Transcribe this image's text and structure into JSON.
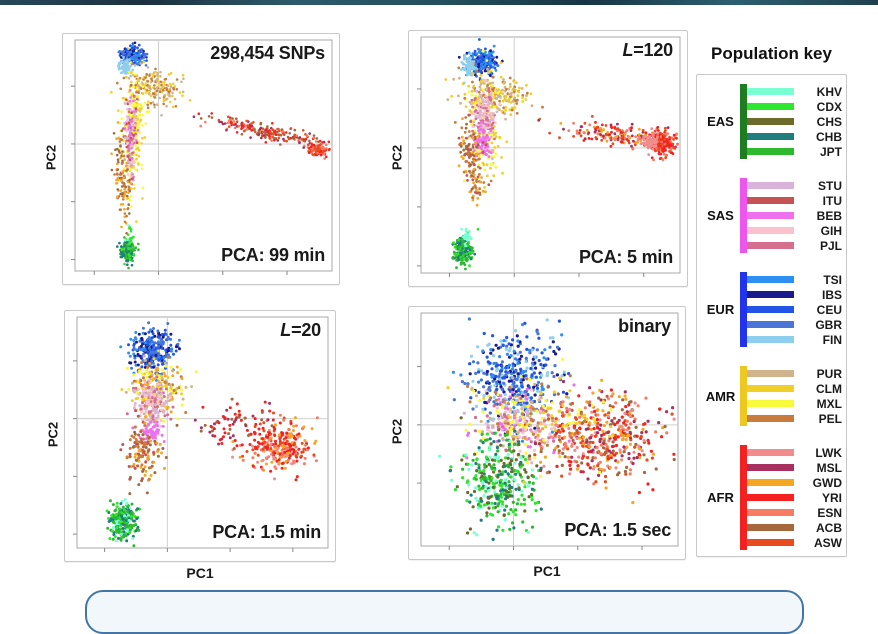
{
  "page": {
    "top_bar_colors": [
      "#27485a",
      "#1c3040",
      "#2d5b6b",
      "#24505e",
      "#173545",
      "#2d5f70",
      "#20404e"
    ],
    "callout_border_color": "#4276a8",
    "callout_fill_color": "#f2f7fb",
    "background": "#ffffff"
  },
  "palette": {
    "KHV": "#7affd2",
    "CDX": "#2ee62e",
    "CHS": "#6b6b2a",
    "CHB": "#1f7d7d",
    "JPT": "#2eb82e",
    "STU": "#d9b3d9",
    "ITU": "#c65353",
    "BEB": "#ee70ee",
    "GIH": "#f9c2cc",
    "PJL": "#d66e8e",
    "TSI": "#2e8ff2",
    "IBS": "#1a1a8c",
    "CEU": "#2255e6",
    "GBR": "#4a74d8",
    "FIN": "#8fcfee",
    "PUR": "#d2b48c",
    "CLM": "#f0d028",
    "MXL": "#fafa3c",
    "PEL": "#c87b3c",
    "LWK": "#f28c8c",
    "MSL": "#a83060",
    "GWD": "#f5a623",
    "YRI": "#f52020",
    "ESN": "#f87c64",
    "ACB": "#a5683c",
    "ASW": "#e84c1e"
  },
  "legend": {
    "title": "Population key",
    "groups": [
      {
        "label": "EAS",
        "bar": "#1e7d1e",
        "items": [
          "KHV",
          "CDX",
          "CHS",
          "CHB",
          "JPT"
        ]
      },
      {
        "label": "SAS",
        "bar": "#ee55ee",
        "items": [
          "STU",
          "ITU",
          "BEB",
          "GIH",
          "PJL"
        ]
      },
      {
        "label": "EUR",
        "bar": "#2233ee",
        "items": [
          "TSI",
          "IBS",
          "CEU",
          "GBR",
          "FIN"
        ]
      },
      {
        "label": "AMR",
        "bar": "#eec81e",
        "items": [
          "PUR",
          "CLM",
          "MXL",
          "PEL"
        ]
      },
      {
        "label": "AFR",
        "bar": "#f52020",
        "items": [
          "LWK",
          "MSL",
          "GWD",
          "YRI",
          "ESN",
          "ACB",
          "ASW"
        ]
      }
    ]
  },
  "chart_data": [
    {
      "type": "scatter",
      "annotation": {
        "italic": "",
        "text": "298,454 SNPs"
      },
      "time_label": "PCA: 99 min",
      "xlabel": "",
      "ylabel": "PC2",
      "grid": {
        "vx": 0.325,
        "hy": 0.55
      },
      "point_r": 1.3,
      "seed": 11,
      "clusters": [
        {
          "group": "EUR",
          "n": 220,
          "cx": 0.225,
          "cy": 0.935,
          "sx": 0.022,
          "sy": 0.017,
          "rot": 0,
          "colors": [
            "CEU",
            "TSI",
            "IBS",
            "GBR"
          ]
        },
        {
          "group": "EUR-FIN",
          "n": 70,
          "cx": 0.193,
          "cy": 0.878,
          "sx": 0.012,
          "sy": 0.016,
          "rot": 0,
          "colors": [
            "FIN"
          ]
        },
        {
          "group": "AMR-tan",
          "n": 190,
          "cx": 0.305,
          "cy": 0.795,
          "sx": 0.06,
          "sy": 0.038,
          "rot": -25,
          "colors": [
            "PUR",
            "PEL",
            "CLM"
          ]
        },
        {
          "group": "AMR-yellow",
          "n": 220,
          "cx": 0.228,
          "cy": 0.62,
          "sx": 0.02,
          "sy": 0.13,
          "rot": 0,
          "colors": [
            "MXL",
            "CLM",
            "MXL"
          ]
        },
        {
          "group": "SAS",
          "n": 180,
          "cx": 0.215,
          "cy": 0.58,
          "sx": 0.011,
          "sy": 0.095,
          "rot": 0,
          "colors": [
            "GIH",
            "PJL",
            "BEB",
            "STU",
            "ITU"
          ]
        },
        {
          "group": "AMR-brown",
          "n": 120,
          "cx": 0.185,
          "cy": 0.4,
          "sx": 0.015,
          "sy": 0.1,
          "rot": 5,
          "colors": [
            "PEL",
            "ACB",
            "GWD"
          ]
        },
        {
          "group": "AFR-streak",
          "n": 230,
          "cx": 0.76,
          "cy": 0.6,
          "sx": 0.12,
          "sy": 0.018,
          "rot": -14,
          "colors": [
            "YRI",
            "ASW",
            "ESN",
            "ACB",
            "MSL"
          ]
        },
        {
          "group": "AFR-dense",
          "n": 120,
          "cx": 0.945,
          "cy": 0.525,
          "sx": 0.016,
          "sy": 0.013,
          "rot": 0,
          "colors": [
            "YRI",
            "ESN",
            "ASW"
          ]
        },
        {
          "group": "EAS",
          "n": 190,
          "cx": 0.205,
          "cy": 0.08,
          "sx": 0.014,
          "sy": 0.024,
          "rot": 0,
          "colors": [
            "JPT",
            "CDX",
            "CHB",
            "JPT"
          ]
        },
        {
          "group": "EAS-fringe",
          "n": 26,
          "cx": 0.215,
          "cy": 0.145,
          "sx": 0.007,
          "sy": 0.03,
          "rot": 0,
          "colors": [
            "KHV",
            "CDX"
          ]
        }
      ]
    },
    {
      "type": "scatter",
      "annotation": {
        "italic": "L",
        "text": "=120"
      },
      "time_label": "PCA: 5 min",
      "xlabel": "",
      "ylabel": "PC2",
      "grid": {
        "vx": 0.36,
        "hy": 0.53
      },
      "point_r": 1.4,
      "seed": 22,
      "clusters": [
        {
          "group": "EUR",
          "n": 280,
          "cx": 0.235,
          "cy": 0.895,
          "sx": 0.028,
          "sy": 0.027,
          "rot": 0,
          "colors": [
            "CEU",
            "TSI",
            "GBR",
            "IBS",
            "TSI"
          ]
        },
        {
          "group": "EUR-FIN",
          "n": 80,
          "cx": 0.183,
          "cy": 0.868,
          "sx": 0.014,
          "sy": 0.022,
          "rot": 0,
          "colors": [
            "FIN"
          ]
        },
        {
          "group": "AMR-tan",
          "n": 180,
          "cx": 0.3,
          "cy": 0.755,
          "sx": 0.062,
          "sy": 0.042,
          "rot": -20,
          "colors": [
            "PUR",
            "PEL",
            "CLM"
          ]
        },
        {
          "group": "AMR-yellow",
          "n": 190,
          "cx": 0.245,
          "cy": 0.63,
          "sx": 0.03,
          "sy": 0.1,
          "rot": 0,
          "colors": [
            "MXL",
            "CLM"
          ]
        },
        {
          "group": "SAS-pink",
          "n": 190,
          "cx": 0.245,
          "cy": 0.66,
          "sx": 0.022,
          "sy": 0.055,
          "rot": 0,
          "colors": [
            "GIH",
            "PJL",
            "STU"
          ]
        },
        {
          "group": "SAS-BEB",
          "n": 70,
          "cx": 0.235,
          "cy": 0.555,
          "sx": 0.018,
          "sy": 0.035,
          "rot": 0,
          "colors": [
            "BEB"
          ]
        },
        {
          "group": "AMR-brown",
          "n": 140,
          "cx": 0.2,
          "cy": 0.46,
          "sx": 0.022,
          "sy": 0.09,
          "rot": 8,
          "colors": [
            "PEL",
            "ACB",
            "GWD",
            "ITU"
          ]
        },
        {
          "group": "AFR-streak",
          "n": 190,
          "cx": 0.78,
          "cy": 0.585,
          "sx": 0.11,
          "sy": 0.022,
          "rot": -8,
          "colors": [
            "YRI",
            "ASW",
            "MSL",
            "ESN",
            "GWD"
          ]
        },
        {
          "group": "AFR-dense",
          "n": 180,
          "cx": 0.93,
          "cy": 0.55,
          "sx": 0.022,
          "sy": 0.028,
          "rot": 0,
          "colors": [
            "YRI",
            "ESN",
            "ASW",
            "YRI"
          ]
        },
        {
          "group": "AFR-LWK",
          "n": 60,
          "cx": 0.885,
          "cy": 0.555,
          "sx": 0.015,
          "sy": 0.018,
          "rot": 0,
          "colors": [
            "LWK"
          ]
        },
        {
          "group": "EAS",
          "n": 220,
          "cx": 0.165,
          "cy": 0.095,
          "sx": 0.018,
          "sy": 0.028,
          "rot": 0,
          "colors": [
            "JPT",
            "CDX",
            "CHB",
            "JPT"
          ]
        },
        {
          "group": "EAS-fringe",
          "n": 24,
          "cx": 0.175,
          "cy": 0.155,
          "sx": 0.01,
          "sy": 0.018,
          "rot": 0,
          "colors": [
            "KHV"
          ]
        }
      ]
    },
    {
      "type": "scatter",
      "annotation": {
        "italic": "L",
        "text": "=20"
      },
      "time_label": "PCA: 1.5 min",
      "xlabel": "PC1",
      "ylabel": "PC2",
      "grid": {
        "vx": 0.36,
        "hy": 0.56
      },
      "point_r": 1.5,
      "seed": 33,
      "clusters": [
        {
          "group": "EUR",
          "n": 290,
          "cx": 0.3,
          "cy": 0.855,
          "sx": 0.042,
          "sy": 0.042,
          "rot": 0,
          "colors": [
            "CEU",
            "TSI",
            "GBR",
            "IBS"
          ]
        },
        {
          "group": "AMR-cloud",
          "n": 230,
          "cx": 0.315,
          "cy": 0.685,
          "sx": 0.05,
          "sy": 0.06,
          "rot": 0,
          "colors": [
            "MXL",
            "CLM",
            "PUR",
            "GWD",
            "PEL"
          ]
        },
        {
          "group": "SAS-pink",
          "n": 180,
          "cx": 0.295,
          "cy": 0.63,
          "sx": 0.033,
          "sy": 0.05,
          "rot": 0,
          "colors": [
            "GIH",
            "PJL",
            "STU"
          ]
        },
        {
          "group": "SAS-BEB",
          "n": 60,
          "cx": 0.3,
          "cy": 0.5,
          "sx": 0.022,
          "sy": 0.025,
          "rot": 0,
          "colors": [
            "BEB"
          ]
        },
        {
          "group": "AMR-brown",
          "n": 130,
          "cx": 0.26,
          "cy": 0.43,
          "sx": 0.035,
          "sy": 0.07,
          "rot": 0,
          "colors": [
            "PEL",
            "ACB",
            "GWD",
            "ITU"
          ]
        },
        {
          "group": "AFR",
          "n": 290,
          "cx": 0.81,
          "cy": 0.44,
          "sx": 0.065,
          "sy": 0.055,
          "rot": 0,
          "colors": [
            "YRI",
            "ESN",
            "ASW",
            "LWK",
            "GWD",
            "YRI"
          ]
        },
        {
          "group": "AFR-tail",
          "n": 70,
          "cx": 0.62,
          "cy": 0.54,
          "sx": 0.09,
          "sy": 0.045,
          "rot": 0,
          "colors": [
            "YRI",
            "MSL",
            "ACB"
          ]
        },
        {
          "group": "EAS",
          "n": 240,
          "cx": 0.185,
          "cy": 0.115,
          "sx": 0.026,
          "sy": 0.038,
          "rot": 0,
          "colors": [
            "JPT",
            "CDX",
            "KHV",
            "JPT",
            "CHB"
          ]
        }
      ]
    },
    {
      "type": "scatter",
      "annotation": {
        "italic": "",
        "text": "binary"
      },
      "time_label": "PCA: 1.5 sec",
      "xlabel": "PC1",
      "ylabel": "PC2",
      "grid": {
        "vx": 0.36,
        "hy": 0.52
      },
      "point_r": 1.6,
      "seed": 44,
      "clusters": [
        {
          "group": "EUR",
          "n": 400,
          "cx": 0.355,
          "cy": 0.72,
          "sx": 0.085,
          "sy": 0.095,
          "rot": 0,
          "colors": [
            "CEU",
            "TSI",
            "GBR",
            "IBS",
            "FIN"
          ]
        },
        {
          "group": "SAS",
          "n": 280,
          "cx": 0.38,
          "cy": 0.53,
          "sx": 0.085,
          "sy": 0.075,
          "rot": 0,
          "colors": [
            "GIH",
            "PJL",
            "BEB",
            "STU",
            "MXL",
            "PUR"
          ]
        },
        {
          "group": "EAS",
          "n": 360,
          "cx": 0.295,
          "cy": 0.29,
          "sx": 0.075,
          "sy": 0.1,
          "rot": 0,
          "colors": [
            "JPT",
            "CDX",
            "KHV",
            "CHB",
            "CHS"
          ]
        },
        {
          "group": "AFR",
          "n": 440,
          "cx": 0.7,
          "cy": 0.47,
          "sx": 0.115,
          "sy": 0.095,
          "rot": 0,
          "colors": [
            "YRI",
            "ESN",
            "ASW",
            "GWD",
            "LWK",
            "MSL",
            "ACB"
          ]
        },
        {
          "group": "AMR",
          "n": 100,
          "cx": 0.46,
          "cy": 0.55,
          "sx": 0.14,
          "sy": 0.12,
          "rot": 0,
          "colors": [
            "MXL",
            "CLM",
            "PEL"
          ]
        }
      ]
    }
  ]
}
